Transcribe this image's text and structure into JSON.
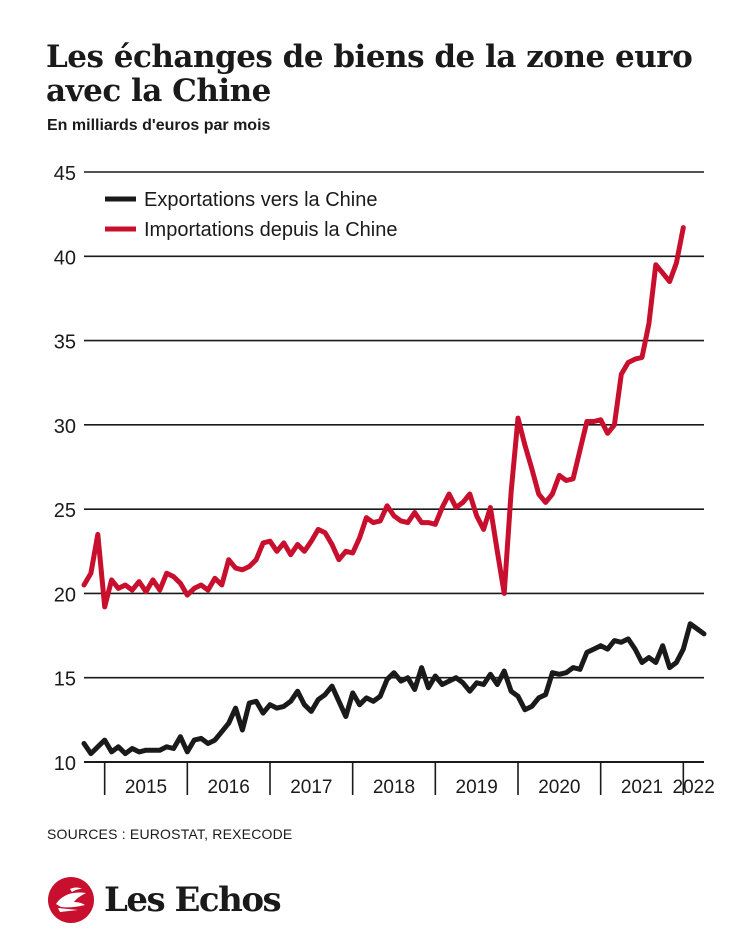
{
  "header": {
    "title": "Les échanges de biens de la zone euro avec la Chine",
    "subtitle": "En milliards d'euros par mois"
  },
  "footer": {
    "source": "SOURCES : EUROSTAT, REXECODE",
    "brand": "Les Echos",
    "logo_icon": "les-echos-bird-icon",
    "brand_color": "#c8102e"
  },
  "chart_data": {
    "type": "line",
    "x_unit": "month",
    "x_start": "2014-10",
    "x_end": "2022-04",
    "ylim": [
      10,
      45
    ],
    "yticks": [
      10,
      15,
      20,
      25,
      30,
      35,
      40,
      45
    ],
    "xticks": [
      "2015",
      "2016",
      "2017",
      "2018",
      "2019",
      "2020",
      "2021",
      "2022"
    ],
    "grid": "horizontal",
    "legend_position": "top-left",
    "series": [
      {
        "name": "Exportations vers la Chine",
        "color": "#1a1a1a",
        "points": [
          [
            "2014-10",
            11.1
          ],
          [
            "2014-11",
            10.5
          ],
          [
            "2014-12",
            10.9
          ],
          [
            "2015-01",
            11.3
          ],
          [
            "2015-02",
            10.6
          ],
          [
            "2015-03",
            10.9
          ],
          [
            "2015-04",
            10.5
          ],
          [
            "2015-05",
            10.8
          ],
          [
            "2015-06",
            10.6
          ],
          [
            "2015-07",
            10.7
          ],
          [
            "2015-08",
            10.7
          ],
          [
            "2015-09",
            10.7
          ],
          [
            "2015-10",
            10.9
          ],
          [
            "2015-11",
            10.8
          ],
          [
            "2015-12",
            11.5
          ],
          [
            "2016-01",
            10.6
          ],
          [
            "2016-02",
            11.3
          ],
          [
            "2016-03",
            11.4
          ],
          [
            "2016-04",
            11.1
          ],
          [
            "2016-05",
            11.3
          ],
          [
            "2016-06",
            11.8
          ],
          [
            "2016-07",
            12.3
          ],
          [
            "2016-08",
            13.2
          ],
          [
            "2016-09",
            11.9
          ],
          [
            "2016-10",
            13.5
          ],
          [
            "2016-11",
            13.6
          ],
          [
            "2016-12",
            12.9
          ],
          [
            "2017-01",
            13.4
          ],
          [
            "2017-02",
            13.2
          ],
          [
            "2017-03",
            13.3
          ],
          [
            "2017-04",
            13.6
          ],
          [
            "2017-05",
            14.2
          ],
          [
            "2017-06",
            13.4
          ],
          [
            "2017-07",
            13.0
          ],
          [
            "2017-08",
            13.7
          ],
          [
            "2017-09",
            14.0
          ],
          [
            "2017-10",
            14.5
          ],
          [
            "2017-11",
            13.6
          ],
          [
            "2017-12",
            12.7
          ],
          [
            "2018-01",
            14.1
          ],
          [
            "2018-02",
            13.4
          ],
          [
            "2018-03",
            13.8
          ],
          [
            "2018-04",
            13.6
          ],
          [
            "2018-05",
            13.9
          ],
          [
            "2018-06",
            14.9
          ],
          [
            "2018-07",
            15.3
          ],
          [
            "2018-08",
            14.8
          ],
          [
            "2018-09",
            15.0
          ],
          [
            "2018-10",
            14.3
          ],
          [
            "2018-11",
            15.6
          ],
          [
            "2018-12",
            14.4
          ],
          [
            "2019-01",
            15.1
          ],
          [
            "2019-02",
            14.6
          ],
          [
            "2019-03",
            14.8
          ],
          [
            "2019-04",
            15.0
          ],
          [
            "2019-05",
            14.7
          ],
          [
            "2019-06",
            14.2
          ],
          [
            "2019-07",
            14.7
          ],
          [
            "2019-08",
            14.6
          ],
          [
            "2019-09",
            15.2
          ],
          [
            "2019-10",
            14.6
          ],
          [
            "2019-11",
            15.4
          ],
          [
            "2019-12",
            14.2
          ],
          [
            "2020-01",
            13.9
          ],
          [
            "2020-02",
            13.1
          ],
          [
            "2020-03",
            13.3
          ],
          [
            "2020-04",
            13.8
          ],
          [
            "2020-05",
            14.0
          ],
          [
            "2020-06",
            15.3
          ],
          [
            "2020-07",
            15.2
          ],
          [
            "2020-08",
            15.3
          ],
          [
            "2020-09",
            15.6
          ],
          [
            "2020-10",
            15.5
          ],
          [
            "2020-11",
            16.5
          ],
          [
            "2020-12",
            16.7
          ],
          [
            "2021-01",
            16.9
          ],
          [
            "2021-02",
            16.7
          ],
          [
            "2021-03",
            17.2
          ],
          [
            "2021-04",
            17.1
          ],
          [
            "2021-05",
            17.3
          ],
          [
            "2021-06",
            16.7
          ],
          [
            "2021-07",
            15.9
          ],
          [
            "2021-08",
            16.2
          ],
          [
            "2021-09",
            15.9
          ],
          [
            "2021-10",
            16.9
          ],
          [
            "2021-11",
            15.6
          ],
          [
            "2021-12",
            15.9
          ],
          [
            "2022-01",
            16.7
          ],
          [
            "2022-02",
            18.2
          ],
          [
            "2022-03",
            17.9
          ],
          [
            "2022-04",
            17.6
          ]
        ]
      },
      {
        "name": "Importations depuis la Chine",
        "color": "#c8102e",
        "points": [
          [
            "2014-10",
            20.5
          ],
          [
            "2014-11",
            21.2
          ],
          [
            "2014-12",
            23.5
          ],
          [
            "2015-01",
            19.2
          ],
          [
            "2015-02",
            20.8
          ],
          [
            "2015-03",
            20.3
          ],
          [
            "2015-04",
            20.5
          ],
          [
            "2015-05",
            20.2
          ],
          [
            "2015-06",
            20.7
          ],
          [
            "2015-07",
            20.1
          ],
          [
            "2015-08",
            20.8
          ],
          [
            "2015-09",
            20.2
          ],
          [
            "2015-10",
            21.2
          ],
          [
            "2015-11",
            21.0
          ],
          [
            "2015-12",
            20.6
          ],
          [
            "2016-01",
            19.9
          ],
          [
            "2016-02",
            20.3
          ],
          [
            "2016-03",
            20.5
          ],
          [
            "2016-04",
            20.2
          ],
          [
            "2016-05",
            20.9
          ],
          [
            "2016-06",
            20.5
          ],
          [
            "2016-07",
            22.0
          ],
          [
            "2016-08",
            21.5
          ],
          [
            "2016-09",
            21.4
          ],
          [
            "2016-10",
            21.6
          ],
          [
            "2016-11",
            22.0
          ],
          [
            "2016-12",
            23.0
          ],
          [
            "2017-01",
            23.1
          ],
          [
            "2017-02",
            22.5
          ],
          [
            "2017-03",
            23.0
          ],
          [
            "2017-04",
            22.3
          ],
          [
            "2017-05",
            22.9
          ],
          [
            "2017-06",
            22.5
          ],
          [
            "2017-07",
            23.1
          ],
          [
            "2017-08",
            23.8
          ],
          [
            "2017-09",
            23.6
          ],
          [
            "2017-10",
            22.9
          ],
          [
            "2017-11",
            22.0
          ],
          [
            "2017-12",
            22.5
          ],
          [
            "2018-01",
            22.4
          ],
          [
            "2018-02",
            23.3
          ],
          [
            "2018-03",
            24.5
          ],
          [
            "2018-04",
            24.2
          ],
          [
            "2018-05",
            24.3
          ],
          [
            "2018-06",
            25.2
          ],
          [
            "2018-07",
            24.6
          ],
          [
            "2018-08",
            24.3
          ],
          [
            "2018-09",
            24.2
          ],
          [
            "2018-10",
            24.8
          ],
          [
            "2018-11",
            24.2
          ],
          [
            "2018-12",
            24.2
          ],
          [
            "2019-01",
            24.1
          ],
          [
            "2019-02",
            25.1
          ],
          [
            "2019-03",
            25.9
          ],
          [
            "2019-04",
            25.1
          ],
          [
            "2019-05",
            25.4
          ],
          [
            "2019-06",
            25.9
          ],
          [
            "2019-07",
            24.6
          ],
          [
            "2019-08",
            23.8
          ],
          [
            "2019-09",
            25.1
          ],
          [
            "2019-10",
            22.5
          ],
          [
            "2019-11",
            20.0
          ],
          [
            "2019-12",
            26.0
          ],
          [
            "2020-01",
            30.4
          ],
          [
            "2020-02",
            28.8
          ],
          [
            "2020-03",
            27.4
          ],
          [
            "2020-04",
            25.9
          ],
          [
            "2020-05",
            25.4
          ],
          [
            "2020-06",
            25.9
          ],
          [
            "2020-07",
            27.0
          ],
          [
            "2020-08",
            26.7
          ],
          [
            "2020-09",
            26.8
          ],
          [
            "2020-10",
            28.5
          ],
          [
            "2020-11",
            30.2
          ],
          [
            "2020-12",
            30.2
          ],
          [
            "2021-01",
            30.3
          ],
          [
            "2021-02",
            29.5
          ],
          [
            "2021-03",
            30.0
          ],
          [
            "2021-04",
            33.0
          ],
          [
            "2021-05",
            33.7
          ],
          [
            "2021-06",
            33.9
          ],
          [
            "2021-07",
            34.0
          ],
          [
            "2021-08",
            36.0
          ],
          [
            "2021-09",
            39.5
          ],
          [
            "2021-10",
            39.0
          ],
          [
            "2021-11",
            38.5
          ],
          [
            "2021-12",
            39.6
          ],
          [
            "2022-01",
            41.7
          ]
        ]
      }
    ]
  }
}
